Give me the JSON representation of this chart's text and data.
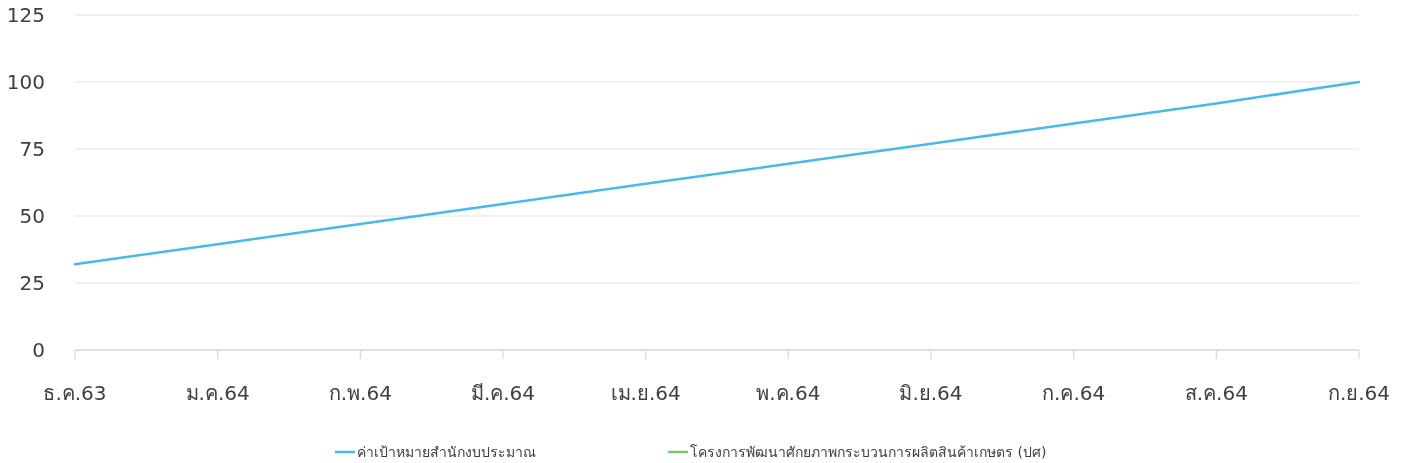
{
  "chart_data": {
    "type": "line",
    "categories": [
      "ธ.ค.63",
      "ม.ค.64",
      "ก.พ.64",
      "มี.ค.64",
      "เม.ย.64",
      "พ.ค.64",
      "มิ.ย.64",
      "ก.ค.64",
      "ส.ค.64",
      "ก.ย.64"
    ],
    "series": [
      {
        "name": "ค่าเป้าหมายสำนักงบประมาณ",
        "color": "#4cb8e8",
        "values": [
          32,
          39.5,
          47,
          54.5,
          62,
          69.5,
          77,
          84.5,
          92,
          100
        ]
      },
      {
        "name": "โครงการพัฒนาศักยภาพกระบวนการผลิตสินค้าเกษตร (ปศ)",
        "color": "#7cc576",
        "values": [
          null,
          null,
          null,
          null,
          null,
          null,
          null,
          null,
          null,
          null
        ]
      }
    ],
    "ylim": [
      0,
      125
    ],
    "yticks": [
      0,
      25,
      50,
      75,
      100,
      125
    ],
    "grid": "y",
    "legend": "bottom",
    "marker": "none",
    "line_style": "solid"
  }
}
